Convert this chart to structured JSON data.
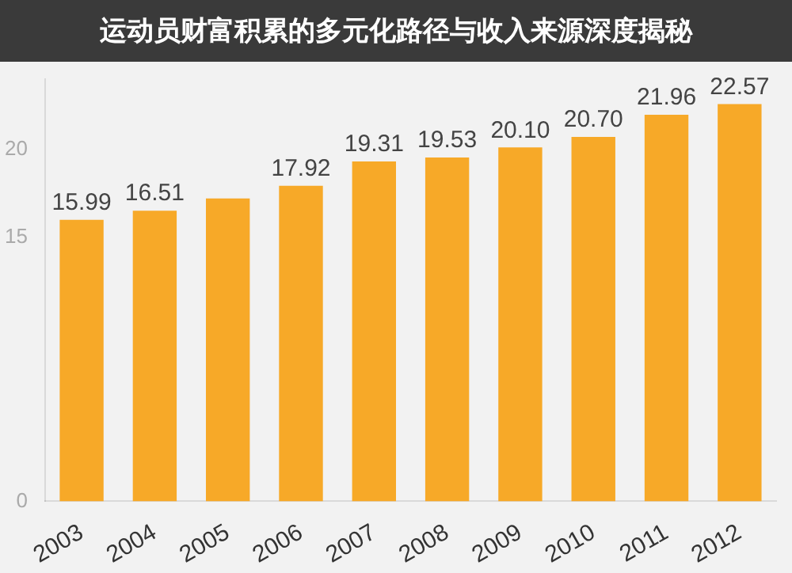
{
  "chart_data": {
    "type": "bar",
    "title": "运动员财富积累的多元化路径与收入来源深度揭秘",
    "categories": [
      "2003",
      "2004",
      "2005",
      "2006",
      "2007",
      "2008",
      "2009",
      "2010",
      "2011",
      "2012"
    ],
    "values": [
      15.99,
      16.51,
      17.2,
      17.92,
      19.31,
      19.53,
      20.1,
      20.7,
      21.96,
      22.57
    ],
    "value_labels": [
      "15.99",
      "16.51",
      null,
      "17.92",
      "19.31",
      "19.53",
      "20.10",
      "20.70",
      "21.96",
      "22.57"
    ],
    "color": "#f7a928",
    "ylim": [
      0,
      24
    ],
    "yticks": [
      0,
      15,
      20
    ],
    "grid": false,
    "legend": false
  }
}
